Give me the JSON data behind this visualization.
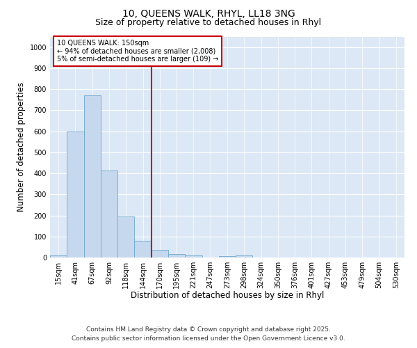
{
  "title_line1": "10, QUEENS WALK, RHYL, LL18 3NG",
  "title_line2": "Size of property relative to detached houses in Rhyl",
  "categories": [
    "15sqm",
    "41sqm",
    "67sqm",
    "92sqm",
    "118sqm",
    "144sqm",
    "170sqm",
    "195sqm",
    "221sqm",
    "247sqm",
    "273sqm",
    "298sqm",
    "324sqm",
    "350sqm",
    "376sqm",
    "401sqm",
    "427sqm",
    "453sqm",
    "479sqm",
    "504sqm",
    "530sqm"
  ],
  "values": [
    10,
    600,
    770,
    415,
    195,
    80,
    35,
    15,
    10,
    0,
    8,
    10,
    0,
    0,
    0,
    0,
    0,
    0,
    0,
    0,
    0
  ],
  "bar_color": "#c5d8ee",
  "bar_edge_color": "#6fa8d0",
  "vline_x": 5.5,
  "vline_color": "#cc0000",
  "annotation_text": "10 QUEENS WALK: 150sqm\n← 94% of detached houses are smaller (2,008)\n5% of semi-detached houses are larger (109) →",
  "annotation_box_color": "#cc0000",
  "xlabel": "Distribution of detached houses by size in Rhyl",
  "ylabel": "Number of detached properties",
  "ylim": [
    0,
    1050
  ],
  "yticks": [
    0,
    100,
    200,
    300,
    400,
    500,
    600,
    700,
    800,
    900,
    1000
  ],
  "background_color": "#dce8f5",
  "footer_line1": "Contains HM Land Registry data © Crown copyright and database right 2025.",
  "footer_line2": "Contains public sector information licensed under the Open Government Licence v3.0.",
  "title_fontsize": 10,
  "subtitle_fontsize": 9,
  "axis_label_fontsize": 8.5,
  "tick_fontsize": 7,
  "annotation_fontsize": 7,
  "footer_fontsize": 6.5
}
